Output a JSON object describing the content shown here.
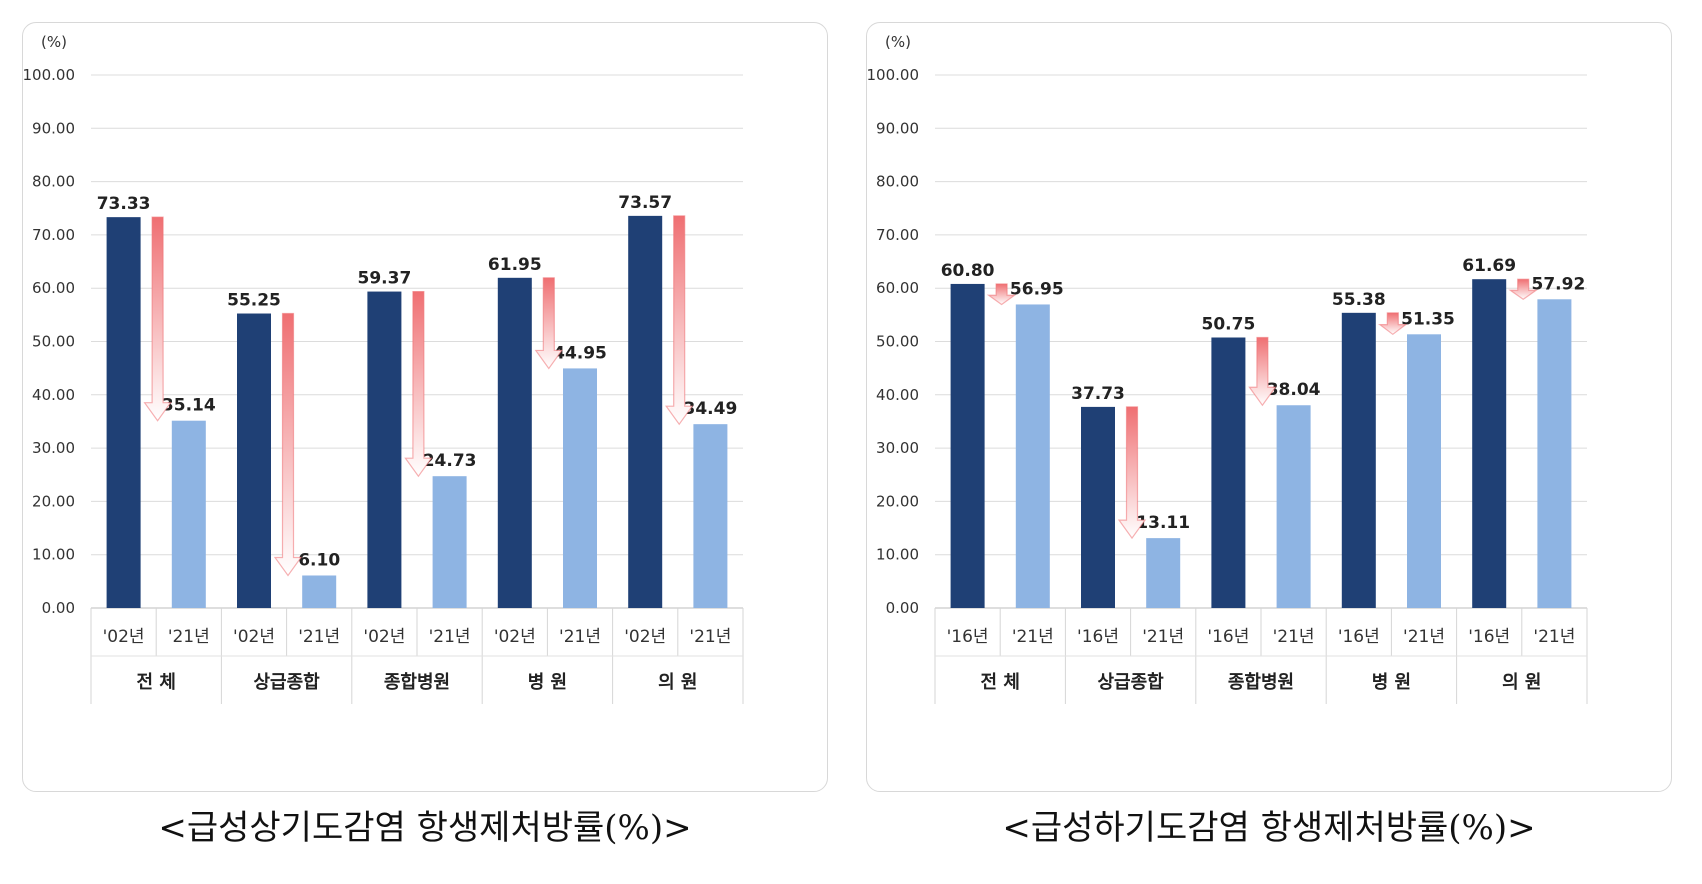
{
  "chart_data": [
    {
      "type": "bar",
      "unit_label": "(%)",
      "ylim": [
        0,
        100
      ],
      "y_ticks": [
        "100.00",
        "90.00",
        "80.00",
        "70.00",
        "60.00",
        "50.00",
        "40.00",
        "30.00",
        "20.00",
        "10.00",
        "0.00"
      ],
      "y_tick_values": [
        100,
        90,
        80,
        70,
        60,
        50,
        40,
        30,
        20,
        10,
        0
      ],
      "grid": true,
      "categories": [
        "전 체",
        "상급종합",
        "종합병원",
        "병 원",
        "의 원"
      ],
      "year_labels": [
        "'02년",
        "'21년"
      ],
      "series": [
        {
          "values": [
            73.33,
            55.25,
            59.37,
            61.95,
            73.57
          ],
          "labels": [
            "73.33",
            "55.25",
            "59.37",
            "61.95",
            "73.57"
          ],
          "color": "#1f4075"
        },
        {
          "values": [
            35.14,
            6.1,
            24.73,
            44.95,
            34.49
          ],
          "labels": [
            "35.14",
            "6.10",
            "24.73",
            "44.95",
            "34.49"
          ],
          "color": "#8eb4e3"
        }
      ],
      "arrow_color": "#ef6f72",
      "caption": "<급성상기도감염  항생제처방률(%)>"
    },
    {
      "type": "bar",
      "unit_label": "(%)",
      "ylim": [
        0,
        100
      ],
      "y_ticks": [
        "100.00",
        "90.00",
        "80.00",
        "70.00",
        "60.00",
        "50.00",
        "40.00",
        "30.00",
        "20.00",
        "10.00",
        "0.00"
      ],
      "y_tick_values": [
        100,
        90,
        80,
        70,
        60,
        50,
        40,
        30,
        20,
        10,
        0
      ],
      "grid": true,
      "categories": [
        "전 체",
        "상급종합",
        "종합병원",
        "병 원",
        "의 원"
      ],
      "year_labels": [
        "'16년",
        "'21년"
      ],
      "series": [
        {
          "values": [
            60.8,
            37.73,
            50.75,
            55.38,
            61.69
          ],
          "labels": [
            "60.80",
            "37.73",
            "50.75",
            "55.38",
            "61.69"
          ],
          "color": "#1f4075"
        },
        {
          "values": [
            56.95,
            13.11,
            38.04,
            51.35,
            57.92
          ],
          "labels": [
            "56.95",
            "13.11",
            "38.04",
            "51.35",
            "57.92"
          ],
          "color": "#8eb4e3"
        }
      ],
      "arrow_color": "#ef6f72",
      "caption": "<급성하기도감염  항생제처방률(%)>"
    }
  ]
}
